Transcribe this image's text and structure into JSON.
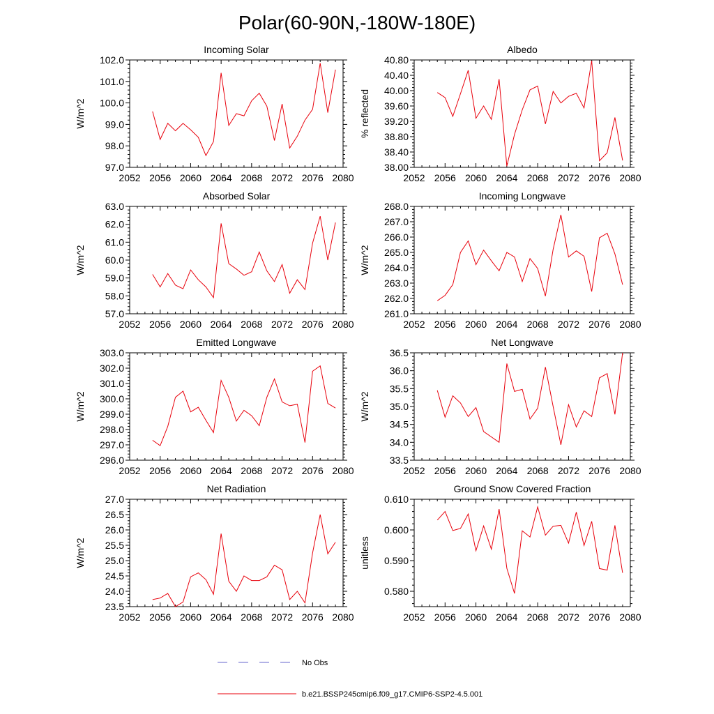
{
  "figure": {
    "title": "Polar(60-90N,-180W-180E)",
    "legend": [
      {
        "label": "No Obs",
        "color": "#6666cc",
        "style": "dashed"
      },
      {
        "label": "b.e21.BSSP245cmip6.f09_g17.CMIP6-SSP2-4.5.001",
        "color": "#e8000b",
        "style": "solid"
      }
    ]
  },
  "chart_data": [
    {
      "type": "line",
      "title": "Incoming Solar",
      "ylabel": "W/m^2",
      "xlim": [
        2052,
        2080
      ],
      "ylim": [
        97.0,
        102.0
      ],
      "yticks": [
        "97.0",
        "98.0",
        "99.0",
        "100.0",
        "101.0",
        "102.0"
      ],
      "xticks": [
        "2052",
        "2056",
        "2060",
        "2064",
        "2068",
        "2072",
        "2076",
        "2080"
      ],
      "series": [
        {
          "color": "#e8000b",
          "x": [
            2055,
            2056,
            2057,
            2058,
            2059,
            2060,
            2061,
            2062,
            2063,
            2064,
            2065,
            2066,
            2067,
            2068,
            2069,
            2070,
            2071,
            2072,
            2073,
            2074,
            2075,
            2076,
            2077,
            2078,
            2079
          ],
          "values": [
            99.6,
            98.3,
            99.05,
            98.7,
            99.05,
            98.75,
            98.4,
            97.55,
            98.2,
            101.4,
            98.95,
            99.5,
            99.4,
            100.1,
            100.45,
            99.85,
            98.25,
            99.95,
            97.9,
            98.45,
            99.2,
            99.7,
            101.85,
            99.55,
            101.55
          ]
        }
      ]
    },
    {
      "type": "line",
      "title": "Albedo",
      "ylabel": "% reflected",
      "xlim": [
        2052,
        2080
      ],
      "ylim": [
        38.0,
        40.8
      ],
      "yticks": [
        "38.00",
        "38.40",
        "38.80",
        "39.20",
        "39.60",
        "40.00",
        "40.40",
        "40.80"
      ],
      "xticks": [
        "2052",
        "2056",
        "2060",
        "2064",
        "2068",
        "2072",
        "2076",
        "2080"
      ],
      "series": [
        {
          "color": "#e8000b",
          "x": [
            2055,
            2056,
            2057,
            2058,
            2059,
            2060,
            2061,
            2062,
            2063,
            2064,
            2065,
            2066,
            2067,
            2068,
            2069,
            2070,
            2071,
            2072,
            2073,
            2074,
            2075,
            2076,
            2077,
            2078,
            2079
          ],
          "values": [
            39.95,
            39.82,
            39.33,
            39.92,
            40.53,
            39.28,
            39.6,
            39.25,
            40.3,
            38.03,
            38.86,
            39.5,
            40.02,
            40.12,
            39.13,
            39.98,
            39.68,
            39.85,
            39.93,
            39.55,
            40.78,
            38.17,
            38.38,
            39.3,
            38.18
          ]
        }
      ]
    },
    {
      "type": "line",
      "title": "Absorbed Solar",
      "ylabel": "W/m^2",
      "xlim": [
        2052,
        2080
      ],
      "ylim": [
        57.0,
        63.0
      ],
      "yticks": [
        "57.0",
        "58.0",
        "59.0",
        "60.0",
        "61.0",
        "62.0",
        "63.0"
      ],
      "xticks": [
        "2052",
        "2056",
        "2060",
        "2064",
        "2068",
        "2072",
        "2076",
        "2080"
      ],
      "series": [
        {
          "color": "#e8000b",
          "x": [
            2055,
            2056,
            2057,
            2058,
            2059,
            2060,
            2061,
            2062,
            2063,
            2064,
            2065,
            2066,
            2067,
            2068,
            2069,
            2070,
            2071,
            2072,
            2073,
            2074,
            2075,
            2076,
            2077,
            2078,
            2079
          ],
          "values": [
            59.2,
            58.5,
            59.25,
            58.6,
            58.4,
            59.45,
            58.9,
            58.5,
            57.9,
            62.05,
            59.8,
            59.5,
            59.15,
            59.35,
            60.45,
            59.4,
            58.8,
            59.75,
            58.15,
            58.9,
            58.35,
            60.95,
            62.45,
            60.0,
            62.1
          ]
        }
      ]
    },
    {
      "type": "line",
      "title": "Incoming Longwave",
      "ylabel": "W/m^2",
      "xlim": [
        2052,
        2080
      ],
      "ylim": [
        261.0,
        268.0
      ],
      "yticks": [
        "261.0",
        "262.0",
        "263.0",
        "264.0",
        "265.0",
        "266.0",
        "267.0",
        "268.0"
      ],
      "xticks": [
        "2052",
        "2056",
        "2060",
        "2064",
        "2068",
        "2072",
        "2076",
        "2080"
      ],
      "series": [
        {
          "color": "#e8000b",
          "x": [
            2055,
            2056,
            2057,
            2058,
            2059,
            2060,
            2061,
            2062,
            2063,
            2064,
            2065,
            2066,
            2067,
            2068,
            2069,
            2070,
            2071,
            2072,
            2073,
            2074,
            2075,
            2076,
            2077,
            2078,
            2079
          ],
          "values": [
            261.85,
            262.2,
            262.9,
            265.0,
            265.75,
            264.2,
            265.15,
            264.45,
            263.8,
            265.0,
            264.7,
            263.1,
            264.6,
            263.95,
            262.15,
            265.2,
            267.45,
            264.7,
            265.1,
            264.75,
            262.45,
            265.95,
            266.25,
            264.9,
            262.9
          ]
        }
      ]
    },
    {
      "type": "line",
      "title": "Emitted Longwave",
      "ylabel": "W/m^2",
      "xlim": [
        2052,
        2080
      ],
      "ylim": [
        296.0,
        303.0
      ],
      "yticks": [
        "296.0",
        "297.0",
        "298.0",
        "299.0",
        "300.0",
        "301.0",
        "302.0",
        "303.0"
      ],
      "xticks": [
        "2052",
        "2056",
        "2060",
        "2064",
        "2068",
        "2072",
        "2076",
        "2080"
      ],
      "series": [
        {
          "color": "#e8000b",
          "x": [
            2055,
            2056,
            2057,
            2058,
            2059,
            2060,
            2061,
            2062,
            2063,
            2064,
            2065,
            2066,
            2067,
            2068,
            2069,
            2070,
            2071,
            2072,
            2073,
            2074,
            2075,
            2076,
            2077,
            2078,
            2079
          ],
          "values": [
            297.3,
            296.95,
            298.2,
            300.1,
            300.5,
            299.15,
            299.45,
            298.6,
            297.8,
            301.2,
            300.1,
            298.55,
            299.25,
            298.9,
            298.25,
            300.1,
            301.3,
            299.8,
            299.55,
            299.65,
            297.15,
            301.8,
            302.15,
            299.7,
            299.4
          ]
        }
      ]
    },
    {
      "type": "line",
      "title": "Net Longwave",
      "ylabel": "W/m^2",
      "xlim": [
        2052,
        2080
      ],
      "ylim": [
        33.5,
        36.5
      ],
      "yticks": [
        "33.5",
        "34.0",
        "34.5",
        "35.0",
        "35.5",
        "36.0",
        "36.5"
      ],
      "xticks": [
        "2052",
        "2056",
        "2060",
        "2064",
        "2068",
        "2072",
        "2076",
        "2080"
      ],
      "series": [
        {
          "color": "#e8000b",
          "x": [
            2055,
            2056,
            2057,
            2058,
            2059,
            2060,
            2061,
            2062,
            2063,
            2064,
            2065,
            2066,
            2067,
            2068,
            2069,
            2070,
            2071,
            2072,
            2073,
            2074,
            2075,
            2076,
            2077,
            2078,
            2079
          ],
          "values": [
            35.45,
            34.7,
            35.3,
            35.1,
            34.72,
            34.97,
            34.3,
            34.15,
            34.0,
            36.2,
            35.42,
            35.48,
            34.65,
            34.95,
            36.1,
            35.0,
            33.93,
            35.05,
            34.43,
            34.88,
            34.72,
            35.8,
            35.92,
            34.78,
            36.5
          ]
        }
      ]
    },
    {
      "type": "line",
      "title": "Net Radiation",
      "ylabel": "W/m^2",
      "xlim": [
        2052,
        2080
      ],
      "ylim": [
        23.5,
        27.0
      ],
      "yticks": [
        "23.5",
        "24.0",
        "24.5",
        "25.0",
        "25.5",
        "26.0",
        "26.5",
        "27.0"
      ],
      "xticks": [
        "2052",
        "2056",
        "2060",
        "2064",
        "2068",
        "2072",
        "2076",
        "2080"
      ],
      "series": [
        {
          "color": "#e8000b",
          "x": [
            2055,
            2056,
            2057,
            2058,
            2059,
            2060,
            2061,
            2062,
            2063,
            2064,
            2065,
            2066,
            2067,
            2068,
            2069,
            2070,
            2071,
            2072,
            2073,
            2074,
            2075,
            2076,
            2077,
            2078,
            2079
          ],
          "values": [
            23.73,
            23.78,
            23.93,
            23.5,
            23.65,
            24.47,
            24.6,
            24.38,
            23.9,
            25.88,
            24.33,
            24.0,
            24.5,
            24.35,
            24.35,
            24.47,
            24.85,
            24.7,
            23.73,
            24.0,
            23.62,
            25.25,
            26.5,
            25.22,
            25.6
          ]
        }
      ]
    },
    {
      "type": "line",
      "title": "Ground Snow Covered Fraction",
      "ylabel": "unitless",
      "xlim": [
        2052,
        2080
      ],
      "ylim": [
        0.575,
        0.61
      ],
      "yticks": [
        "0.580",
        "0.590",
        "0.600",
        "0.610"
      ],
      "ytick_values": [
        0.58,
        0.59,
        0.6,
        0.61
      ],
      "xticks": [
        "2052",
        "2056",
        "2060",
        "2064",
        "2068",
        "2072",
        "2076",
        "2080"
      ],
      "series": [
        {
          "color": "#e8000b",
          "x": [
            2055,
            2056,
            2057,
            2058,
            2059,
            2060,
            2061,
            2062,
            2063,
            2064,
            2065,
            2066,
            2067,
            2068,
            2069,
            2070,
            2071,
            2072,
            2073,
            2074,
            2075,
            2076,
            2077,
            2078,
            2079
          ],
          "values": [
            0.6032,
            0.606,
            0.5998,
            0.6005,
            0.6052,
            0.5932,
            0.6013,
            0.5937,
            0.6068,
            0.5875,
            0.5793,
            0.5997,
            0.5977,
            0.6075,
            0.5983,
            0.6012,
            0.6015,
            0.5957,
            0.6058,
            0.5949,
            0.6028,
            0.5874,
            0.5869,
            0.6015,
            0.586
          ]
        }
      ]
    }
  ]
}
